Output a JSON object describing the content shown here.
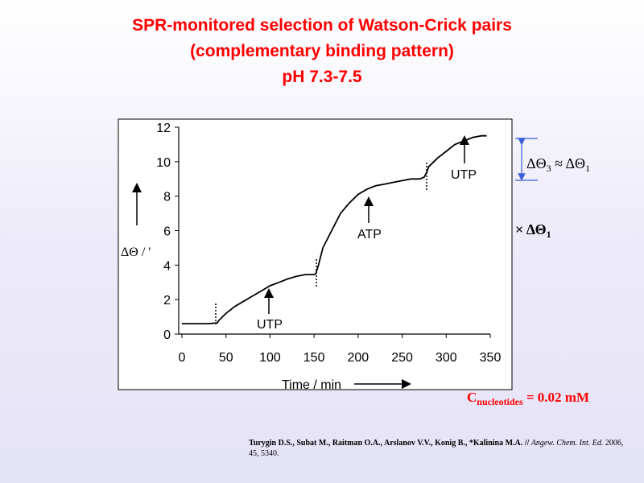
{
  "chart_data": {
    "type": "line",
    "title": [
      "SPR-monitored selection of Watson-Crick pairs",
      "(complementary binding pattern)",
      "pH 7.3-7.5"
    ],
    "xlabel": "Time / min",
    "ylabel": "ΔΘ / ′",
    "x": [
      0,
      10,
      20,
      30,
      40,
      42,
      50,
      60,
      70,
      80,
      90,
      100,
      110,
      120,
      130,
      140,
      150,
      152,
      155,
      160,
      170,
      180,
      190,
      200,
      210,
      220,
      230,
      240,
      250,
      260,
      270,
      275,
      278,
      280,
      290,
      300,
      310,
      320,
      330,
      340,
      346
    ],
    "series": [
      {
        "color": "#000000",
        "values": [
          0.6,
          0.6,
          0.6,
          0.6,
          0.65,
          0.8,
          1.2,
          1.6,
          1.9,
          2.2,
          2.5,
          2.8,
          3.0,
          3.2,
          3.35,
          3.45,
          3.45,
          3.5,
          4.0,
          5.0,
          6.0,
          7.0,
          7.6,
          8.1,
          8.4,
          8.6,
          8.7,
          8.8,
          8.9,
          9.0,
          9.0,
          9.1,
          9.4,
          9.7,
          10.2,
          10.6,
          11.0,
          11.2,
          11.4,
          11.5,
          11.5
        ]
      }
    ],
    "xlim": [
      0,
      350
    ],
    "xticks": [
      0,
      50,
      100,
      150,
      200,
      250,
      300,
      350
    ],
    "ylim": [
      0,
      12
    ],
    "yticks": [
      0,
      2,
      4,
      6,
      8,
      10,
      12
    ],
    "annotations": [
      "UTP",
      "ATP",
      "UTP"
    ]
  },
  "slide": {
    "ratio_note": [
      "ΔΘ",
      "3",
      " ≈ ΔΘ",
      "1"
    ],
    "times_note": [
      "× ΔΘ",
      "1"
    ],
    "concentration": [
      "C",
      "nucleotides",
      " = 0.02 mM"
    ],
    "citation": [
      "Turygin D.S., Subat M., Raitman O.A., Arslanov V.V., Konig B., *Kalinina M.A. // ",
      "Angew. Chem. Int. Ed.",
      " 2006, 45, 5340."
    ]
  }
}
